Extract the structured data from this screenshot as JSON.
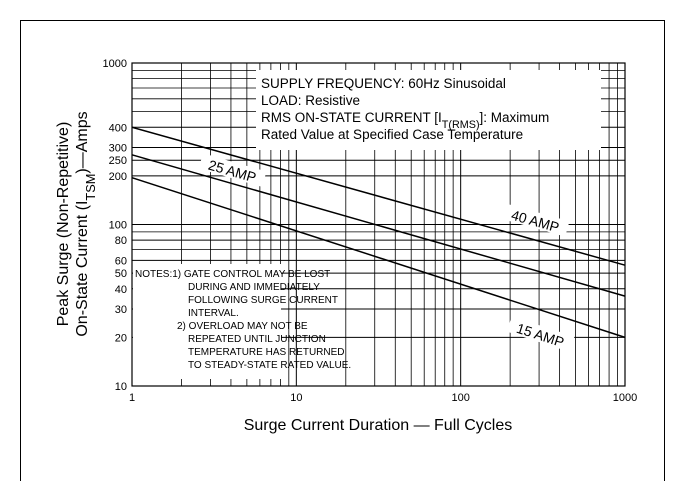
{
  "chart_data": {
    "type": "line",
    "xlabel": "Surge Current Duration — Full Cycles",
    "ylabel": [
      [
        "Peak Surge (Non-Repetitive)"
      ],
      [
        "On-State Current (I",
        "TSM",
        ")—Amps"
      ]
    ],
    "xlog": true,
    "ylog": true,
    "grid": true,
    "xlim": [
      1,
      1000
    ],
    "ylim": [
      10,
      1000
    ],
    "xticks": [
      1,
      10,
      100,
      1000
    ],
    "yticks": [
      10,
      20,
      30,
      40,
      50,
      60,
      80,
      100,
      200,
      250,
      300,
      400,
      1000
    ],
    "xminor": [
      2,
      3,
      4,
      5,
      6,
      7,
      8,
      9,
      20,
      30,
      40,
      50,
      60,
      70,
      80,
      90,
      200,
      300,
      400,
      500,
      600,
      700,
      800,
      900
    ],
    "yminor": [
      70,
      90,
      500,
      600,
      700,
      800,
      900
    ],
    "series": [
      {
        "name": "40 AMP",
        "color": "#000000",
        "x": [
          1,
          1000
        ],
        "values": [
          400,
          56
        ]
      },
      {
        "name": "25 AMP",
        "color": "#000000",
        "x": [
          1,
          1000
        ],
        "values": [
          270,
          36
        ]
      },
      {
        "name": "15 AMP",
        "color": "#000000",
        "x": [
          1,
          1000
        ],
        "values": [
          195,
          20
        ]
      }
    ],
    "conditions": [
      [
        "SUPPLY FREQUENCY: 60Hz Sinusoidal"
      ],
      [
        "LOAD: Resistive"
      ],
      [
        "RMS ON-STATE CURRENT [I",
        "T(RMS)",
        "]: Maximum"
      ],
      [
        "Rated Value at Specified Case Temperature"
      ]
    ],
    "notes": [
      "NOTES:1) GATE CONTROL MAY BE LOST",
      "DURING AND IMMEDIATELY",
      "FOLLOWING SURGE CURRENT",
      "INTERVAL.",
      "2) OVERLOAD MAY NOT BE",
      "REPEATED UNTIL JUNCTION",
      "TEMPERATURE HAS RETURNED",
      "TO STEADY-STATE RATED VALUE."
    ]
  }
}
